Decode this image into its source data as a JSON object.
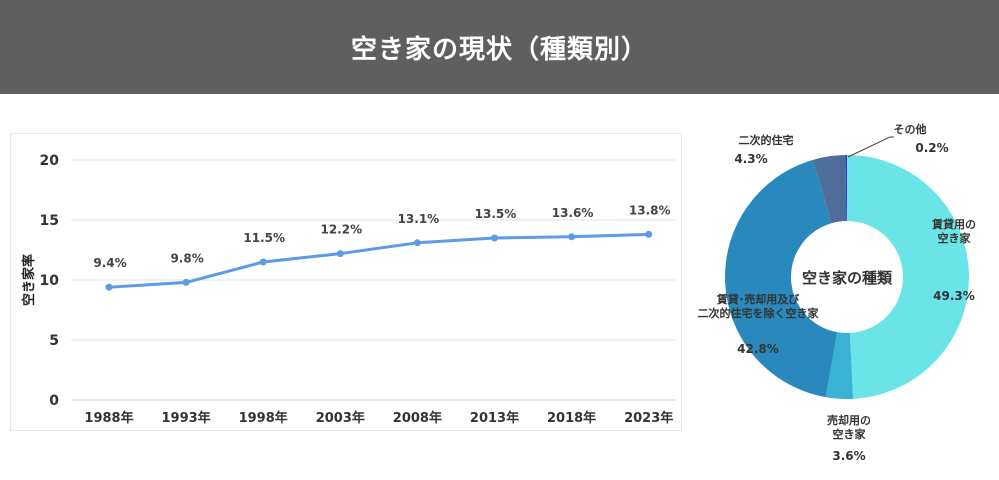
{
  "header": {
    "title": "空き家の現状（種類別）"
  },
  "chart_data": [
    {
      "type": "line",
      "title": "",
      "xlabel": "",
      "ylabel": "空き家率",
      "categories": [
        "1988年",
        "1993年",
        "1998年",
        "2003年",
        "2008年",
        "2013年",
        "2018年",
        "2023年"
      ],
      "series": [
        {
          "values": [
            9.4,
            9.8,
            11.5,
            12.2,
            13.1,
            13.5,
            13.6,
            13.8
          ],
          "labels": [
            "9.4%",
            "9.8%",
            "11.5%",
            "12.2%",
            "13.1%",
            "13.5%",
            "13.6%",
            "13.8%"
          ],
          "color": "#5b9be8"
        }
      ],
      "ylim": [
        0,
        20
      ],
      "yticks": [
        "0",
        "5",
        "10",
        "15",
        "20"
      ],
      "grid": true
    },
    {
      "type": "pie",
      "donut": true,
      "center_label": "空き家の種類",
      "slices": [
        {
          "name": "賃貸用の空き家",
          "label_lines": [
            "賃貸用の",
            "空き家"
          ],
          "value": 49.3,
          "pct": "49.3%",
          "color": "#6be4e8"
        },
        {
          "name": "売却用の空き家",
          "label_lines": [
            "売却用の",
            "空き家"
          ],
          "value": 3.6,
          "pct": "3.6%",
          "color": "#3ab2d6"
        },
        {
          "name": "賃貸・売却用及び二次的住宅を除く空き家",
          "label_lines": [
            "賃貸･売却用及び",
            "二次的住宅を除く空き家"
          ],
          "value": 42.8,
          "pct": "42.8%",
          "color": "#2989bd"
        },
        {
          "name": "二次的住宅",
          "label_lines": [
            "二次的住宅"
          ],
          "value": 4.3,
          "pct": "4.3%",
          "color": "#4f6d9b"
        },
        {
          "name": "その他",
          "label_lines": [
            "その他"
          ],
          "value": 0.2,
          "pct": "0.2%",
          "color": "#3a3ad0"
        }
      ]
    }
  ]
}
